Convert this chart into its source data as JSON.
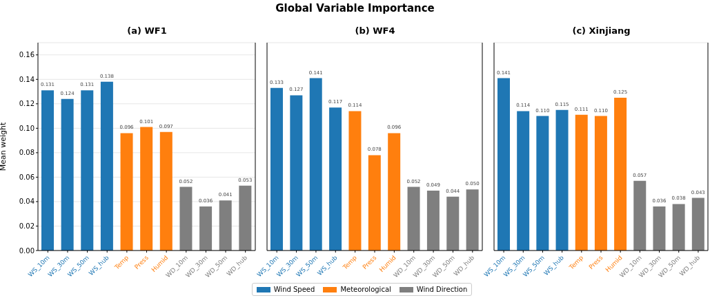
{
  "chart_data": [
    {
      "type": "bar",
      "subtitle": "(a) WF1",
      "ylabel": "Mean weight",
      "stacked": true,
      "grid": "y",
      "ylim": [
        0,
        0.17
      ],
      "yticks": [
        {
          "value": 0,
          "label": "0.00"
        },
        {
          "value": 0.02,
          "label": "0.02"
        },
        {
          "value": 0.04,
          "label": "0.04"
        },
        {
          "value": 0.06,
          "label": "0.06"
        },
        {
          "value": 0.08,
          "label": "0.08"
        },
        {
          "value": 0.1,
          "label": "0.10"
        },
        {
          "value": 0.12,
          "label": "0.12"
        },
        {
          "value": 0.14,
          "label": "0.14"
        },
        {
          "value": 0.16,
          "label": "0.16"
        }
      ],
      "categories": [
        "WS_10m",
        "WS_30m",
        "WS_50m",
        "WS_hub",
        "Temp",
        "Press",
        "Humid",
        "WD_10m",
        "WD_30m",
        "WD_50m",
        "WD_hub"
      ],
      "series": [
        {
          "color": "#1f77b4",
          "values": [
            0.131,
            0.124,
            0.131,
            0.138,
            null,
            null,
            null,
            null,
            null,
            null,
            null
          ],
          "value_labels": [
            "0.131",
            "0.124",
            "0.131",
            "0.138",
            null,
            null,
            null,
            null,
            null,
            null,
            null
          ]
        },
        {
          "color": "#ff7f0e",
          "values": [
            null,
            null,
            null,
            null,
            0.096,
            0.101,
            0.097,
            null,
            null,
            null,
            null
          ],
          "value_labels": [
            null,
            null,
            null,
            null,
            "0.096",
            "0.101",
            "0.097",
            null,
            null,
            null,
            null
          ]
        },
        {
          "color": "#7f7f7f",
          "values": [
            null,
            null,
            null,
            null,
            null,
            null,
            null,
            0.052,
            0.036,
            0.041,
            0.053
          ],
          "value_labels": [
            null,
            null,
            null,
            null,
            null,
            null,
            null,
            "0.052",
            "0.036",
            "0.041",
            "0.053"
          ]
        }
      ]
    },
    {
      "type": "bar",
      "title": "Global Variable Importance",
      "subtitle": "(b) WF4",
      "stacked": true,
      "grid": "y",
      "legend": "bottom",
      "tick_labels": "x",
      "ylim": [
        0,
        0.17
      ],
      "yticks": [
        {
          "value": 0,
          "label": null
        },
        {
          "value": 0.02,
          "label": null
        },
        {
          "value": 0.04,
          "label": null
        },
        {
          "value": 0.06,
          "label": null
        },
        {
          "value": 0.08,
          "label": null
        },
        {
          "value": 0.1,
          "label": null
        },
        {
          "value": 0.12,
          "label": null
        },
        {
          "value": 0.14,
          "label": null
        },
        {
          "value": 0.16,
          "label": null
        }
      ],
      "categories": [
        "WS_10m",
        "WS_30m",
        "WS_50m",
        "WS_hub",
        "Temp",
        "Press",
        "Humid",
        "WD_10m",
        "WD_30m",
        "WD_50m",
        "WD_hub"
      ],
      "series": [
        {
          "name": "Wind Speed",
          "color": "#1f77b4",
          "values": [
            0.133,
            0.127,
            0.141,
            0.117,
            null,
            null,
            null,
            null,
            null,
            null,
            null
          ],
          "value_labels": [
            "0.133",
            "0.127",
            "0.141",
            "0.117",
            null,
            null,
            null,
            null,
            null,
            null,
            null
          ]
        },
        {
          "name": "Meteorological",
          "color": "#ff7f0e",
          "values": [
            null,
            null,
            null,
            null,
            0.114,
            0.078,
            0.096,
            null,
            null,
            null,
            null
          ],
          "value_labels": [
            null,
            null,
            null,
            null,
            "0.114",
            "0.078",
            "0.096",
            null,
            null,
            null,
            null
          ]
        },
        {
          "name": "Wind Direction",
          "color": "#7f7f7f",
          "values": [
            null,
            null,
            null,
            null,
            null,
            null,
            null,
            0.052,
            0.049,
            0.044,
            0.05
          ],
          "value_labels": [
            null,
            null,
            null,
            null,
            null,
            null,
            null,
            "0.052",
            "0.049",
            "0.044",
            "0.050"
          ]
        }
      ]
    },
    {
      "type": "bar",
      "subtitle": "(c) Xinjiang",
      "stacked": true,
      "grid": "y",
      "tick_labels": "x",
      "ylim": [
        0,
        0.17
      ],
      "yticks": [
        {
          "value": 0,
          "label": null
        },
        {
          "value": 0.02,
          "label": null
        },
        {
          "value": 0.04,
          "label": null
        },
        {
          "value": 0.06,
          "label": null
        },
        {
          "value": 0.08,
          "label": null
        },
        {
          "value": 0.1,
          "label": null
        },
        {
          "value": 0.12,
          "label": null
        },
        {
          "value": 0.14,
          "label": null
        },
        {
          "value": 0.16,
          "label": null
        }
      ],
      "categories": [
        "WS_10m",
        "WS_30m",
        "WS_50m",
        "WS_hub",
        "Temp",
        "Press",
        "Humid",
        "WD_10m",
        "WD_30m",
        "WD_50m",
        "WD_hub"
      ],
      "series": [
        {
          "color": "#1f77b4",
          "values": [
            0.141,
            0.114,
            0.11,
            0.115,
            null,
            null,
            null,
            null,
            null,
            null,
            null
          ],
          "value_labels": [
            "0.141",
            "0.114",
            "0.110",
            "0.115",
            null,
            null,
            null,
            null,
            null,
            null,
            null
          ]
        },
        {
          "color": "#ff7f0e",
          "values": [
            null,
            null,
            null,
            null,
            0.111,
            0.11,
            0.125,
            null,
            null,
            null,
            null
          ],
          "value_labels": [
            null,
            null,
            null,
            null,
            "0.111",
            "0.110",
            "0.125",
            null,
            null,
            null,
            null
          ]
        },
        {
          "color": "#7f7f7f",
          "values": [
            null,
            null,
            null,
            null,
            null,
            null,
            null,
            0.057,
            0.036,
            0.038,
            0.043
          ],
          "value_labels": [
            null,
            null,
            null,
            null,
            null,
            null,
            null,
            "0.057",
            "0.036",
            "0.038",
            "0.043"
          ]
        }
      ]
    }
  ]
}
